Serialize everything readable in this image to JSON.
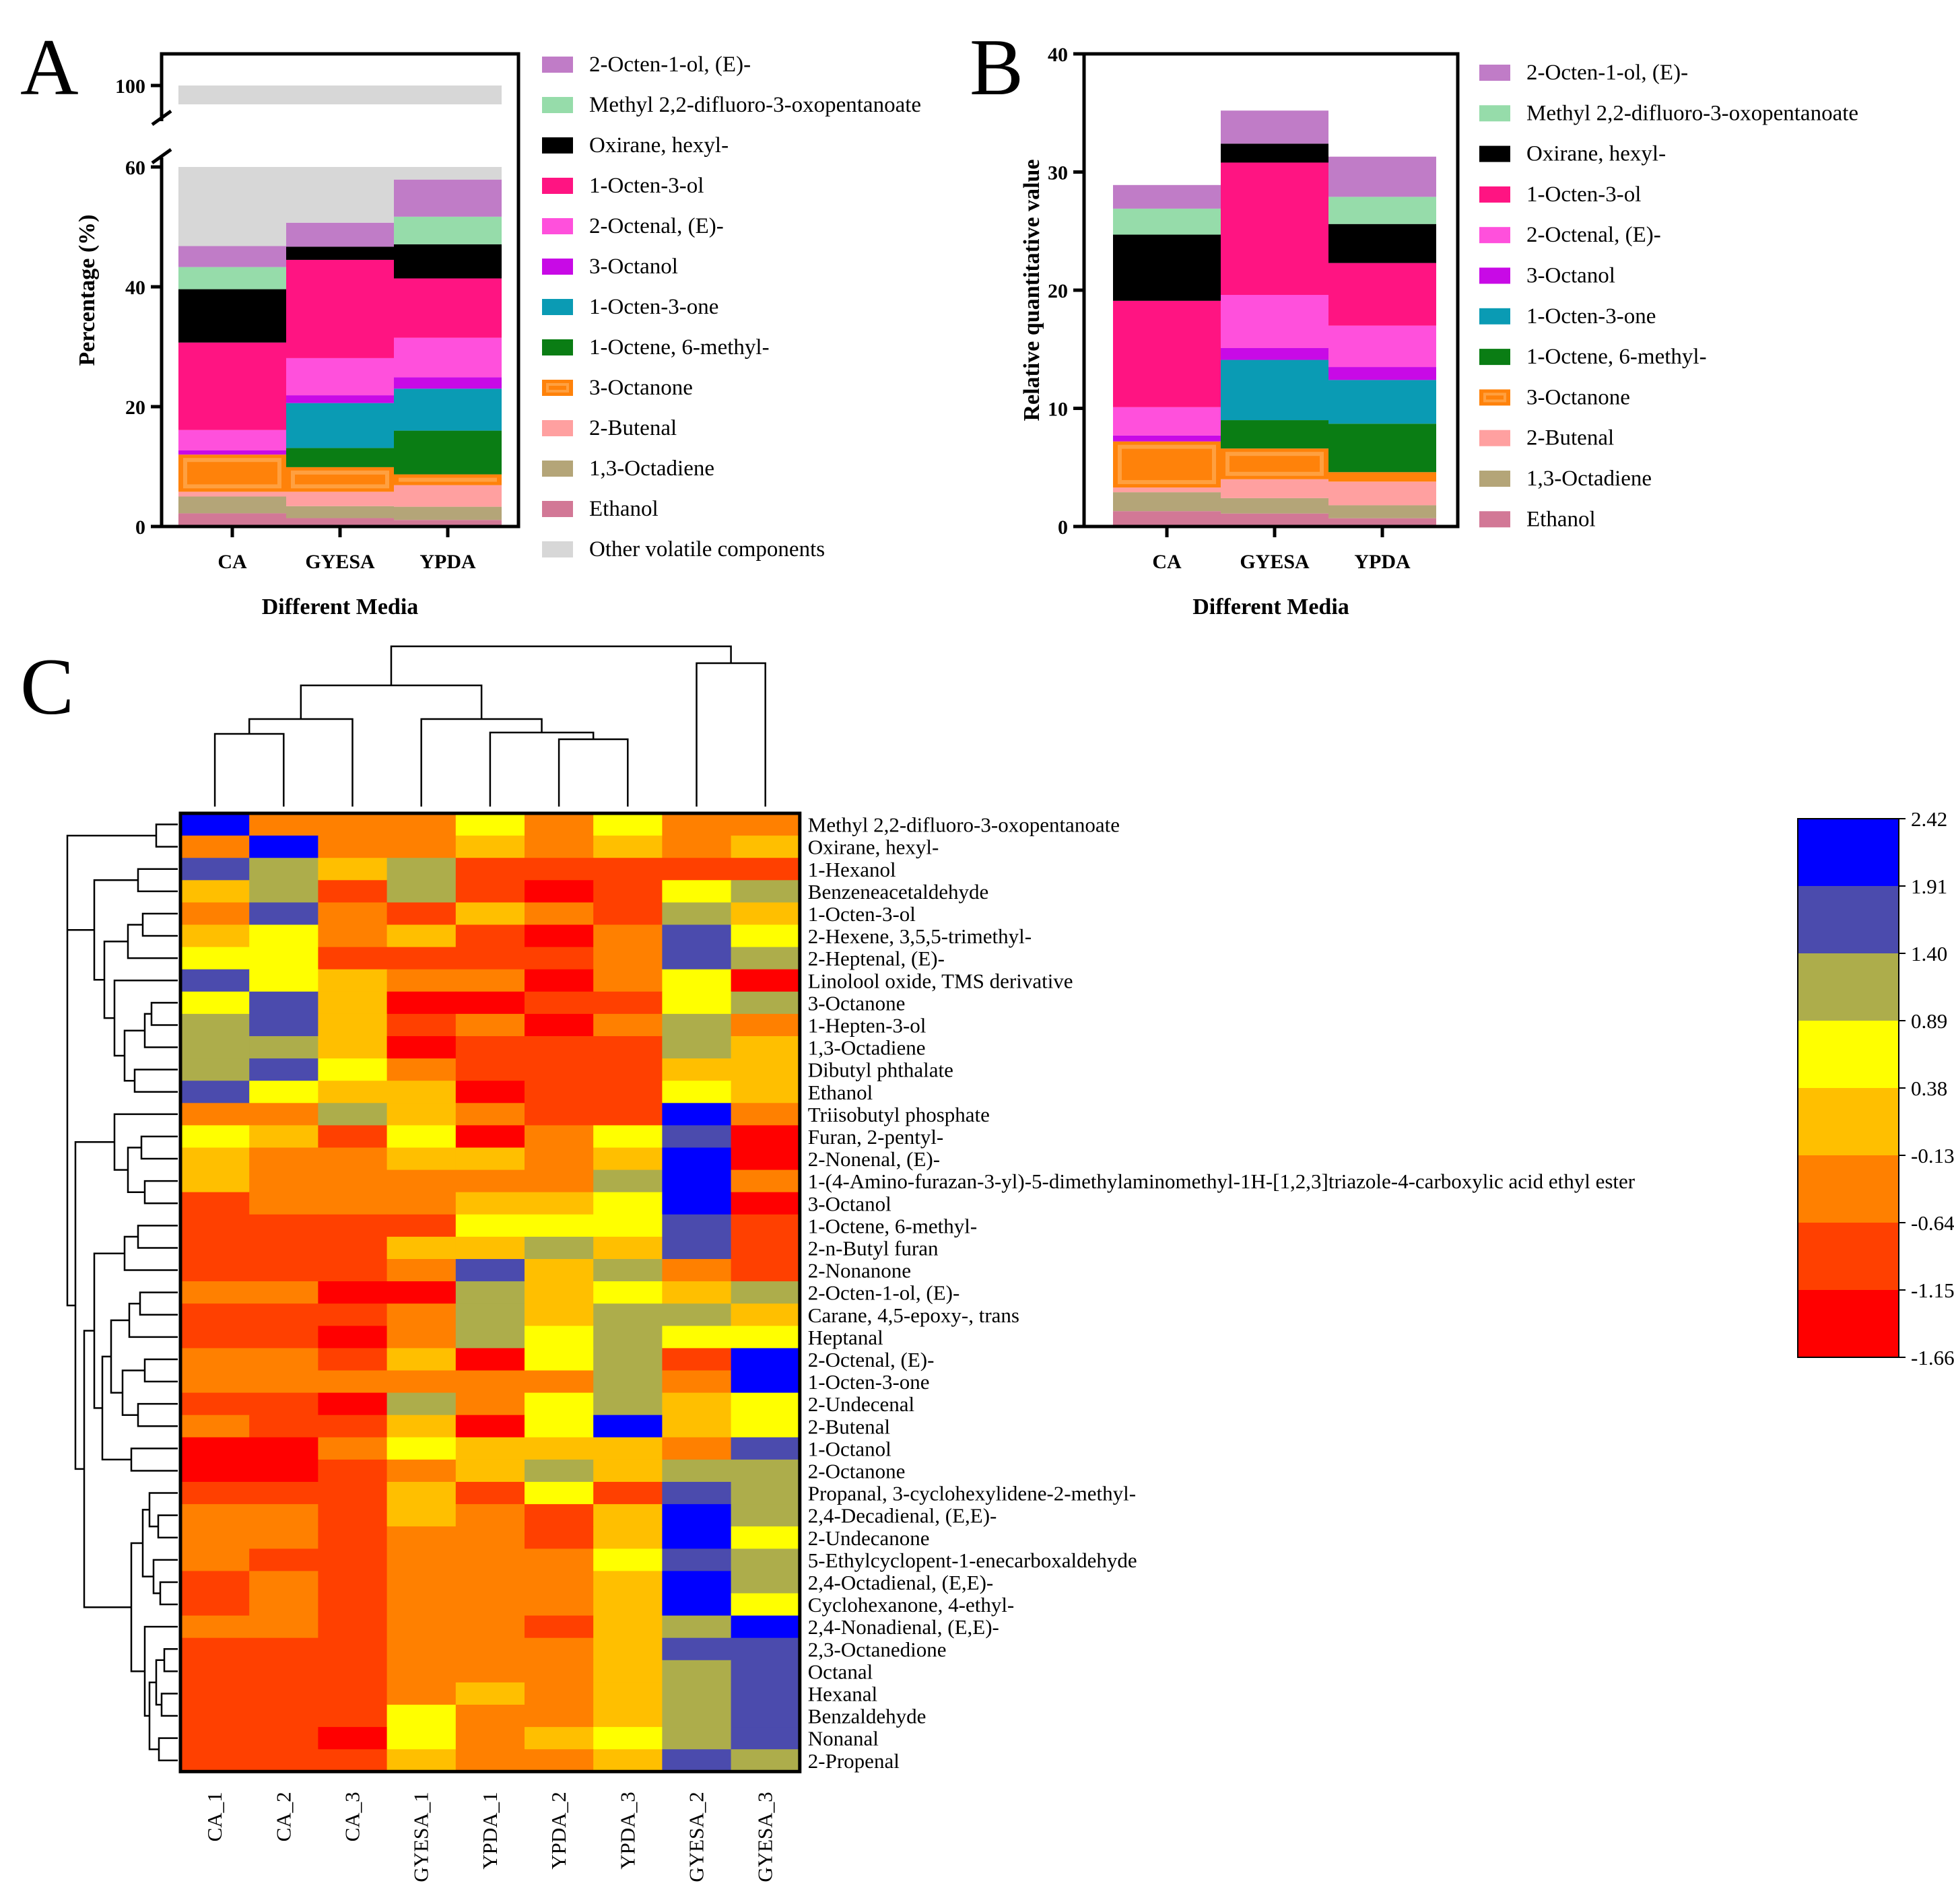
{
  "panels": {
    "a": "A",
    "b": "B",
    "c": "C"
  },
  "colors": {
    "2-Octen-1-ol, (E)-": "#c07cc7",
    "Methyl 2,2-difluoro-3-oxopentanoate": "#96dcaa",
    "Oxirane, hexyl-": "#000000",
    "1-Octen-3-ol": "#ff1482",
    "2-Octenal, (E)-": "#ff50dc",
    "3-Octanol": "#c80ae6",
    "1-Octen-3-one": "#0a9bb4",
    "1-Octene, 6-methyl-": "#0a7d14",
    "3-Octanone": "#ff820a",
    "2-Butenal": "#ffa0a0",
    "1,3-Octadiene": "#b4a578",
    "Ethanol": "#d27896",
    "Other volatile components": "#d7d7d7"
  },
  "chart_data": [
    {
      "panel": "A",
      "type": "bar",
      "stacked": true,
      "xlabel": "Different Media",
      "ylabel": "Percentage (%)",
      "ylim": [
        0,
        100
      ],
      "axis_break": [
        60,
        90
      ],
      "yticks": [
        "0",
        "20",
        "40",
        "60",
        "100"
      ],
      "categories": [
        "CA",
        "GYESA",
        "YPDA"
      ],
      "series": [
        {
          "name": "Ethanol",
          "values": [
            2.2,
            1.4,
            1.1
          ]
        },
        {
          "name": "1,3-Octadiene",
          "values": [
            2.8,
            2.0,
            2.2
          ]
        },
        {
          "name": "2-Butenal",
          "values": [
            0.8,
            2.4,
            3.6
          ]
        },
        {
          "name": "3-Octanone",
          "values": [
            6.2,
            4.1,
            1.8
          ]
        },
        {
          "name": "1-Octene, 6-methyl-",
          "values": [
            0.0,
            3.2,
            7.3
          ]
        },
        {
          "name": "1-Octen-3-one",
          "values": [
            0.0,
            7.5,
            7.0
          ]
        },
        {
          "name": "3-Octanol",
          "values": [
            0.7,
            1.3,
            1.9
          ]
        },
        {
          "name": "2-Octenal, (E)-",
          "values": [
            3.4,
            6.2,
            6.6
          ]
        },
        {
          "name": "1-Octen-3-ol",
          "values": [
            14.6,
            16.4,
            9.9
          ]
        },
        {
          "name": "Oxirane, hexyl-",
          "values": [
            8.9,
            2.2,
            5.7
          ]
        },
        {
          "name": "Methyl 2,2-difluoro-3-oxopentanoate",
          "values": [
            3.7,
            0.0,
            4.6
          ]
        },
        {
          "name": "2-Octen-1-ol, (E)-",
          "values": [
            3.5,
            4.0,
            6.2
          ]
        },
        {
          "name": "Other volatile components",
          "values": [
            53.2,
            49.3,
            42.1
          ]
        }
      ],
      "legend": [
        "2-Octen-1-ol, (E)-",
        "Methyl 2,2-difluoro-3-oxopentanoate",
        "Oxirane, hexyl-",
        "1-Octen-3-ol",
        "2-Octenal, (E)-",
        "3-Octanol",
        "1-Octen-3-one",
        "1-Octene, 6-methyl-",
        "3-Octanone",
        "2-Butenal",
        "1,3-Octadiene",
        "Ethanol",
        "Other volatile components"
      ]
    },
    {
      "panel": "B",
      "type": "bar",
      "stacked": true,
      "xlabel": "Different Media",
      "ylabel": "Relative quantitative value",
      "ylim": [
        0,
        40
      ],
      "yticks": [
        "0",
        "10",
        "20",
        "30",
        "40"
      ],
      "categories": [
        "CA",
        "GYESA",
        "YPDA"
      ],
      "series": [
        {
          "name": "Ethanol",
          "values": [
            1.3,
            1.1,
            0.7
          ]
        },
        {
          "name": "1,3-Octadiene",
          "values": [
            1.6,
            1.3,
            1.1
          ]
        },
        {
          "name": "2-Butenal",
          "values": [
            0.4,
            1.6,
            2.0
          ]
        },
        {
          "name": "3-Octanone",
          "values": [
            3.9,
            2.6,
            0.8
          ]
        },
        {
          "name": "1-Octene, 6-methyl-",
          "values": [
            0.0,
            2.4,
            4.1
          ]
        },
        {
          "name": "1-Octen-3-one",
          "values": [
            0.0,
            5.1,
            3.7
          ]
        },
        {
          "name": "3-Octanol",
          "values": [
            0.5,
            1.0,
            1.1
          ]
        },
        {
          "name": "2-Octenal, (E)-",
          "values": [
            2.4,
            4.5,
            3.5
          ]
        },
        {
          "name": "1-Octen-3-ol",
          "values": [
            9.0,
            11.2,
            5.3
          ]
        },
        {
          "name": "Oxirane, hexyl-",
          "values": [
            5.6,
            1.6,
            3.3
          ]
        },
        {
          "name": "Methyl 2,2-difluoro-3-oxopentanoate",
          "values": [
            2.2,
            0.0,
            2.3
          ]
        },
        {
          "name": "2-Octen-1-ol, (E)-",
          "values": [
            2.0,
            2.8,
            3.4
          ]
        }
      ],
      "legend": [
        "2-Octen-1-ol, (E)-",
        "Methyl 2,2-difluoro-3-oxopentanoate",
        "Oxirane, hexyl-",
        "1-Octen-3-ol",
        "2-Octenal, (E)-",
        "3-Octanol",
        "1-Octen-3-one",
        "1-Octene, 6-methyl-",
        "3-Octanone",
        "2-Butenal",
        "1,3-Octadiene",
        "Ethanol"
      ]
    },
    {
      "panel": "C",
      "type": "heatmap",
      "columns": [
        "CA_1",
        "CA_2",
        "CA_3",
        "GYESA_1",
        "YPDA_1",
        "YPDA_2",
        "YPDA_3",
        "GYESA_2",
        "GYESA_3"
      ],
      "rows": [
        "Methyl 2,2-difluoro-3-oxopentanoate",
        "Oxirane, hexyl-",
        "1-Hexanol",
        "Benzeneacetaldehyde",
        "1-Octen-3-ol",
        "2-Hexene, 3,5,5-trimethyl-",
        "2-Heptenal, (E)-",
        "Linolool oxide, TMS derivative",
        "3-Octanone",
        "1-Hepten-3-ol",
        "1,3-Octadiene",
        "Dibutyl phthalate",
        "Ethanol",
        "Triisobutyl phosphate",
        "Furan, 2-pentyl-",
        "2-Nonenal, (E)-",
        "1-(4-Amino-furazan-3-yl)-5-dimethylaminomethyl-1H-[1,2,3]triazole-4-carboxylic acid ethyl ester",
        "3-Octanol",
        "1-Octene, 6-methyl-",
        "2-n-Butyl furan",
        "2-Nonanone",
        "2-Octen-1-ol, (E)-",
        "Carane, 4,5-epoxy-, trans",
        "Heptanal",
        "2-Octenal, (E)-",
        "1-Octen-3-one",
        "2-Undecenal",
        "2-Butenal",
        "1-Octanol",
        "2-Octanone",
        "Propanal, 3-cyclohexylidene-2-methyl-",
        "2,4-Decadienal, (E,E)-",
        "2-Undecanone",
        "5-Ethylcyclopent-1-enecarboxaldehyde",
        "2,4-Octadienal, (E,E)-",
        "Cyclohexanone, 4-ethyl-",
        "2,4-Nonadienal, (E,E)-",
        "2,3-Octanedione",
        "Octanal",
        "Hexanal",
        "Benzaldehyde",
        "Nonanal",
        "2-Propenal"
      ],
      "values": [
        [
          2.3,
          -0.4,
          -0.4,
          -0.4,
          0.6,
          -0.4,
          0.6,
          -0.4,
          -0.4
        ],
        [
          -0.4,
          2.3,
          -0.4,
          -0.4,
          0.1,
          -0.4,
          0.1,
          -0.4,
          0.1
        ],
        [
          1.7,
          1.1,
          0.1,
          1.1,
          -0.9,
          -0.9,
          -0.9,
          -0.9,
          -0.9
        ],
        [
          0.1,
          1.1,
          -0.9,
          1.1,
          -0.9,
          -1.4,
          -0.9,
          0.6,
          1.1
        ],
        [
          -0.4,
          1.7,
          -0.4,
          -0.9,
          0.1,
          -0.4,
          -0.9,
          1.1,
          0.1
        ],
        [
          0.1,
          0.6,
          -0.4,
          0.1,
          -0.9,
          -1.4,
          -0.4,
          1.7,
          0.6
        ],
        [
          0.6,
          0.6,
          -0.9,
          -0.9,
          -0.9,
          -0.9,
          -0.4,
          1.7,
          1.1
        ],
        [
          1.7,
          0.6,
          0.1,
          -0.4,
          -0.4,
          -1.4,
          -0.4,
          0.6,
          -1.4
        ],
        [
          0.6,
          1.7,
          0.1,
          -1.4,
          -1.4,
          -0.9,
          -0.9,
          0.6,
          1.1
        ],
        [
          1.1,
          1.7,
          0.1,
          -0.9,
          -0.4,
          -1.4,
          -0.4,
          1.1,
          -0.4
        ],
        [
          1.1,
          1.1,
          0.1,
          -1.4,
          -0.9,
          -0.9,
          -0.9,
          1.1,
          0.1
        ],
        [
          1.1,
          1.7,
          0.6,
          -0.4,
          -0.9,
          -0.9,
          -0.9,
          0.1,
          0.1
        ],
        [
          1.7,
          0.6,
          0.1,
          0.1,
          -1.4,
          -0.9,
          -0.9,
          0.6,
          0.1
        ],
        [
          -0.4,
          -0.4,
          1.1,
          0.1,
          -0.4,
          -0.9,
          -0.9,
          2.3,
          -0.4
        ],
        [
          0.6,
          0.1,
          -0.9,
          0.6,
          -1.4,
          -0.4,
          0.6,
          1.7,
          -1.4
        ],
        [
          0.1,
          -0.4,
          -0.4,
          0.1,
          0.1,
          -0.4,
          0.1,
          2.3,
          -1.4
        ],
        [
          0.1,
          -0.4,
          -0.4,
          -0.4,
          -0.4,
          -0.4,
          1.1,
          2.3,
          -0.4
        ],
        [
          -0.9,
          -0.4,
          -0.4,
          -0.4,
          0.1,
          0.1,
          0.6,
          2.3,
          -1.4
        ],
        [
          -0.9,
          -0.9,
          -0.9,
          -0.9,
          0.6,
          0.6,
          0.6,
          1.7,
          -0.9
        ],
        [
          -0.9,
          -0.9,
          -0.9,
          0.1,
          0.1,
          1.1,
          0.1,
          1.7,
          -0.9
        ],
        [
          -0.9,
          -0.9,
          -0.9,
          -0.4,
          1.7,
          0.1,
          1.1,
          -0.4,
          -0.9
        ],
        [
          -0.4,
          -0.4,
          -1.4,
          -1.4,
          1.1,
          0.1,
          0.6,
          0.1,
          1.1
        ],
        [
          -0.9,
          -0.9,
          -0.9,
          -0.4,
          1.1,
          0.1,
          1.1,
          1.1,
          0.1
        ],
        [
          -0.9,
          -0.9,
          -1.4,
          -0.4,
          1.1,
          0.6,
          1.1,
          0.6,
          0.6
        ],
        [
          -0.4,
          -0.4,
          -0.9,
          0.1,
          -1.4,
          0.6,
          1.1,
          -0.9,
          2.3
        ],
        [
          -0.4,
          -0.4,
          -0.4,
          -0.4,
          -0.4,
          -0.4,
          1.1,
          -0.4,
          2.3
        ],
        [
          -0.9,
          -0.9,
          -1.4,
          1.1,
          -0.4,
          0.6,
          1.1,
          0.1,
          0.6
        ],
        [
          -0.4,
          -0.9,
          -0.9,
          0.1,
          -1.4,
          0.6,
          2.3,
          0.1,
          0.6
        ],
        [
          -1.4,
          -1.4,
          -0.4,
          0.6,
          0.1,
          0.1,
          0.1,
          -0.4,
          1.7
        ],
        [
          -1.4,
          -1.4,
          -0.9,
          -0.4,
          0.1,
          1.1,
          0.1,
          1.1,
          1.1
        ],
        [
          -0.9,
          -0.9,
          -0.9,
          0.1,
          -0.9,
          0.6,
          -0.9,
          1.7,
          1.1
        ],
        [
          -0.4,
          -0.4,
          -0.9,
          0.1,
          -0.4,
          -0.9,
          0.1,
          2.3,
          1.1
        ],
        [
          -0.4,
          -0.4,
          -0.9,
          -0.4,
          -0.4,
          -0.9,
          0.1,
          2.3,
          0.6
        ],
        [
          -0.4,
          -0.9,
          -0.9,
          -0.4,
          -0.4,
          -0.4,
          0.6,
          1.7,
          1.1
        ],
        [
          -0.9,
          -0.4,
          -0.9,
          -0.4,
          -0.4,
          -0.4,
          0.1,
          2.3,
          1.1
        ],
        [
          -0.9,
          -0.4,
          -0.9,
          -0.4,
          -0.4,
          -0.4,
          0.1,
          2.3,
          0.6
        ],
        [
          -0.4,
          -0.4,
          -0.9,
          -0.4,
          -0.4,
          -0.9,
          0.1,
          1.1,
          2.3
        ],
        [
          -0.9,
          -0.9,
          -0.9,
          -0.4,
          -0.4,
          -0.4,
          0.1,
          1.7,
          1.7
        ],
        [
          -0.9,
          -0.9,
          -0.9,
          -0.4,
          -0.4,
          -0.4,
          0.1,
          1.1,
          1.7
        ],
        [
          -0.9,
          -0.9,
          -0.9,
          -0.4,
          0.1,
          -0.4,
          0.1,
          1.1,
          1.7
        ],
        [
          -0.9,
          -0.9,
          -0.9,
          0.6,
          -0.4,
          -0.4,
          0.1,
          1.1,
          1.7
        ],
        [
          -0.9,
          -0.9,
          -1.4,
          0.6,
          -0.4,
          0.1,
          0.6,
          1.1,
          1.7
        ],
        [
          -0.9,
          -0.9,
          -0.9,
          0.1,
          -0.4,
          -0.4,
          0.1,
          1.7,
          1.1
        ]
      ],
      "colorbar_ticks": [
        "2.42",
        "1.91",
        "1.40",
        "0.89",
        "0.38",
        "-0.13",
        "-0.64",
        "-1.15",
        "-1.66"
      ],
      "colorbar_colors": [
        "#0000ff",
        "#4b4bad",
        "#adad4b",
        "#ffff00",
        "#ffbf00",
        "#ff8000",
        "#ff4000",
        "#ff0000"
      ]
    }
  ]
}
